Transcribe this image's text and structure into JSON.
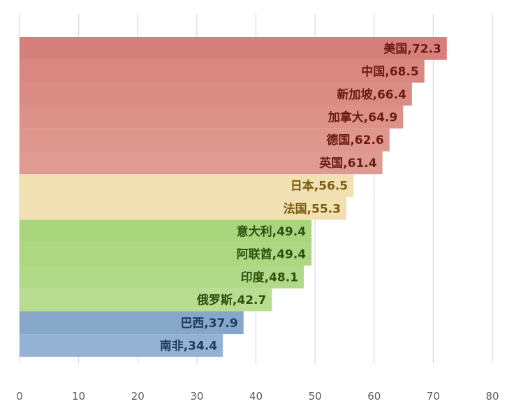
{
  "chart_data": {
    "type": "bar",
    "orientation": "horizontal",
    "title": "",
    "xlabel": "",
    "ylabel": "",
    "xlim": [
      0,
      80
    ],
    "x_ticks": [
      0,
      10,
      20,
      30,
      40,
      50,
      60,
      70,
      80
    ],
    "grid": "vertical",
    "legend": "none",
    "categories": [
      "美国",
      "中国",
      "新加坡",
      "加拿大",
      "德国",
      "英国",
      "日本",
      "法国",
      "意大利",
      "阿联酋",
      "印度",
      "俄罗斯",
      "巴西",
      "南非"
    ],
    "values": [
      72.3,
      68.5,
      66.4,
      64.9,
      62.6,
      61.4,
      56.5,
      55.3,
      49.4,
      49.4,
      48.1,
      42.7,
      37.9,
      34.4
    ],
    "data_labels": [
      "美国,72.3",
      "中国,68.5",
      "新加坡,66.4",
      "加拿大,64.9",
      "德国,62.6",
      "英国,61.4",
      "日本,56.5",
      "法国,55.3",
      "意大利,49.4",
      "阿联酋,49.4",
      "印度,48.1",
      "俄罗斯,42.7",
      "巴西,37.9",
      "南非,34.4"
    ],
    "bar_colors": [
      "#d6807b",
      "#d98780",
      "#da8c84",
      "#dc9189",
      "#de968d",
      "#df9a92",
      "#f1e0b1",
      "#f1e0b1",
      "#a9d67c",
      "#add881",
      "#b1da88",
      "#b8dd91",
      "#86a7c9",
      "#94b3d2"
    ],
    "label_colors": [
      "#6b1a14",
      "#6b1a14",
      "#6b1a14",
      "#6b1a14",
      "#6b1a14",
      "#6b1a14",
      "#7a5a10",
      "#7a5a10",
      "#2f4f0f",
      "#2f4f0f",
      "#2f4f0f",
      "#2f4f0f",
      "#1f3a5f",
      "#1f3a5f"
    ]
  }
}
